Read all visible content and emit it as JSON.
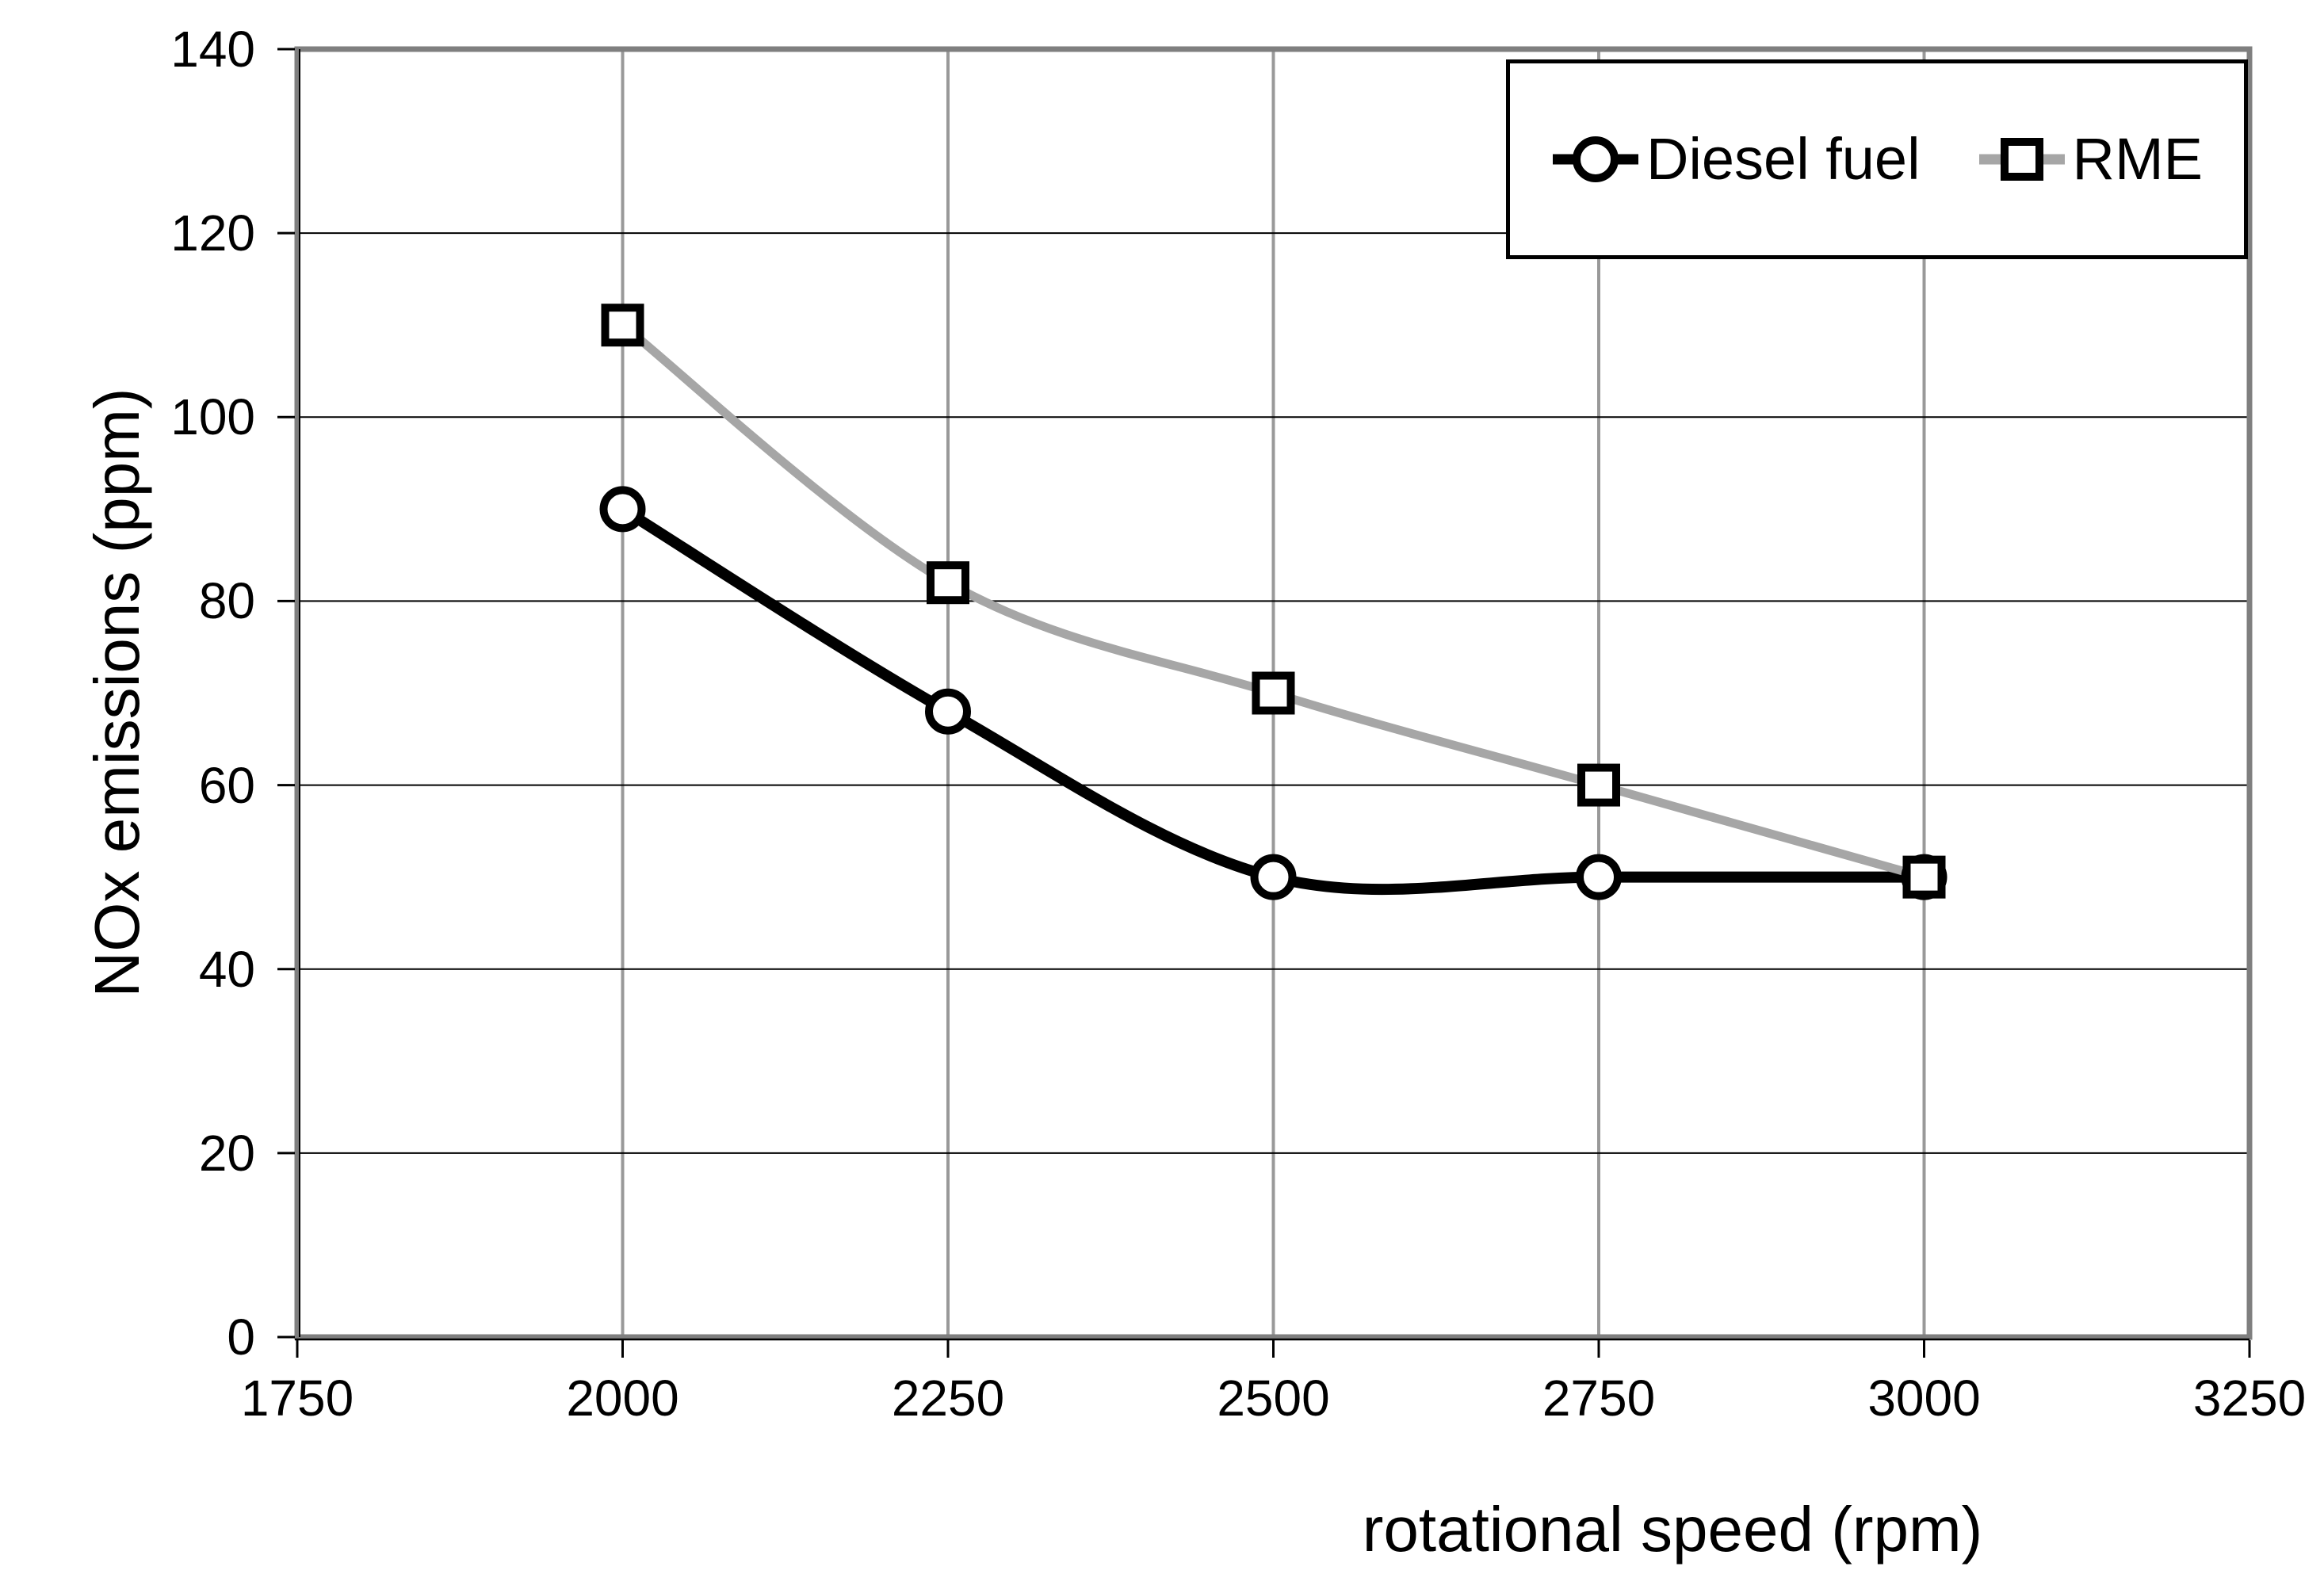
{
  "chart_data": {
    "type": "line",
    "title": "",
    "xlabel": "rotational speed (rpm)",
    "ylabel": "NOx emissions (ppm)",
    "xlim": [
      1750,
      3250
    ],
    "ylim": [
      0,
      140
    ],
    "x_ticks": [
      1750,
      2000,
      2250,
      2500,
      2750,
      3000,
      3250
    ],
    "y_ticks": [
      0,
      20,
      40,
      60,
      80,
      100,
      120,
      140
    ],
    "grid": true,
    "smoothed_lines": true,
    "legend_position": "top-right-inside",
    "x": [
      2000,
      2250,
      2500,
      2750,
      3000
    ],
    "series": [
      {
        "name": "Diesel fuel",
        "marker": "circle",
        "color": "#000000",
        "line_width": 14,
        "values": [
          90,
          68,
          50,
          50,
          50
        ]
      },
      {
        "name": "RME",
        "marker": "square",
        "color": "#a6a6a6",
        "line_width": 11,
        "values": [
          110,
          82,
          70,
          60,
          50
        ]
      }
    ],
    "style": {
      "background": "#ffffff",
      "plot_border_color": "#7f7f7f",
      "v_gridline_color": "#999999",
      "h_gridline_color": "#000000",
      "axis_color": "#000000",
      "tick_color": "#000000",
      "marker_fill": "#ffffff",
      "marker_stroke": "#000000"
    }
  }
}
